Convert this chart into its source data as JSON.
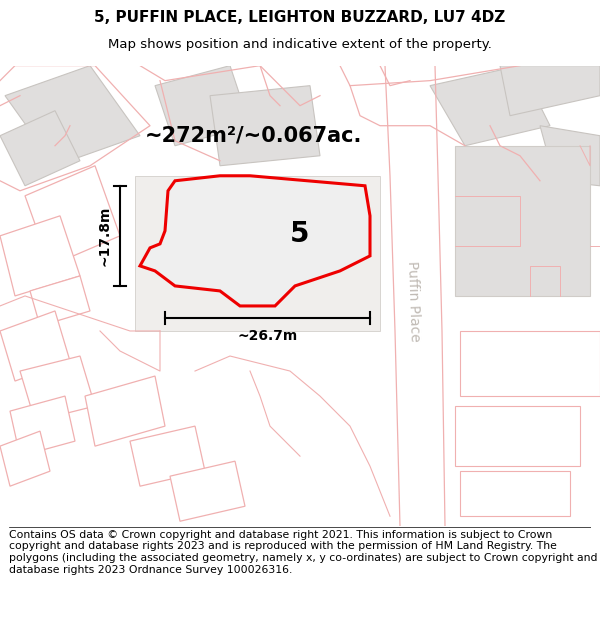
{
  "title_line1": "5, PUFFIN PLACE, LEIGHTON BUZZARD, LU7 4DZ",
  "title_line2": "Map shows position and indicative extent of the property.",
  "footer_text": "Contains OS data © Crown copyright and database right 2021. This information is subject to Crown copyright and database rights 2023 and is reproduced with the permission of HM Land Registry. The polygons (including the associated geometry, namely x, y co-ordinates) are subject to Crown copyright and database rights 2023 Ordnance Survey 100026316.",
  "area_label": "~272m²/~0.067ac.",
  "width_label": "~26.7m",
  "height_label": "~17.8m",
  "number_label": "5",
  "map_bg": "#ffffff",
  "building_fill": "#e0dedd",
  "building_stroke": "#c8c4c0",
  "plot_fill": "#efefef",
  "plot_stroke": "#ee0000",
  "road_label_color": "#c0bab4",
  "pink_stroke": "#f0b0b0",
  "pink_fill": "#ffffff",
  "title_fontsize": 11,
  "subtitle_fontsize": 9.5,
  "footer_fontsize": 7.8,
  "area_fontsize": 15,
  "dim_fontsize": 10,
  "number_fontsize": 20,
  "road_label_fontsize": 10
}
